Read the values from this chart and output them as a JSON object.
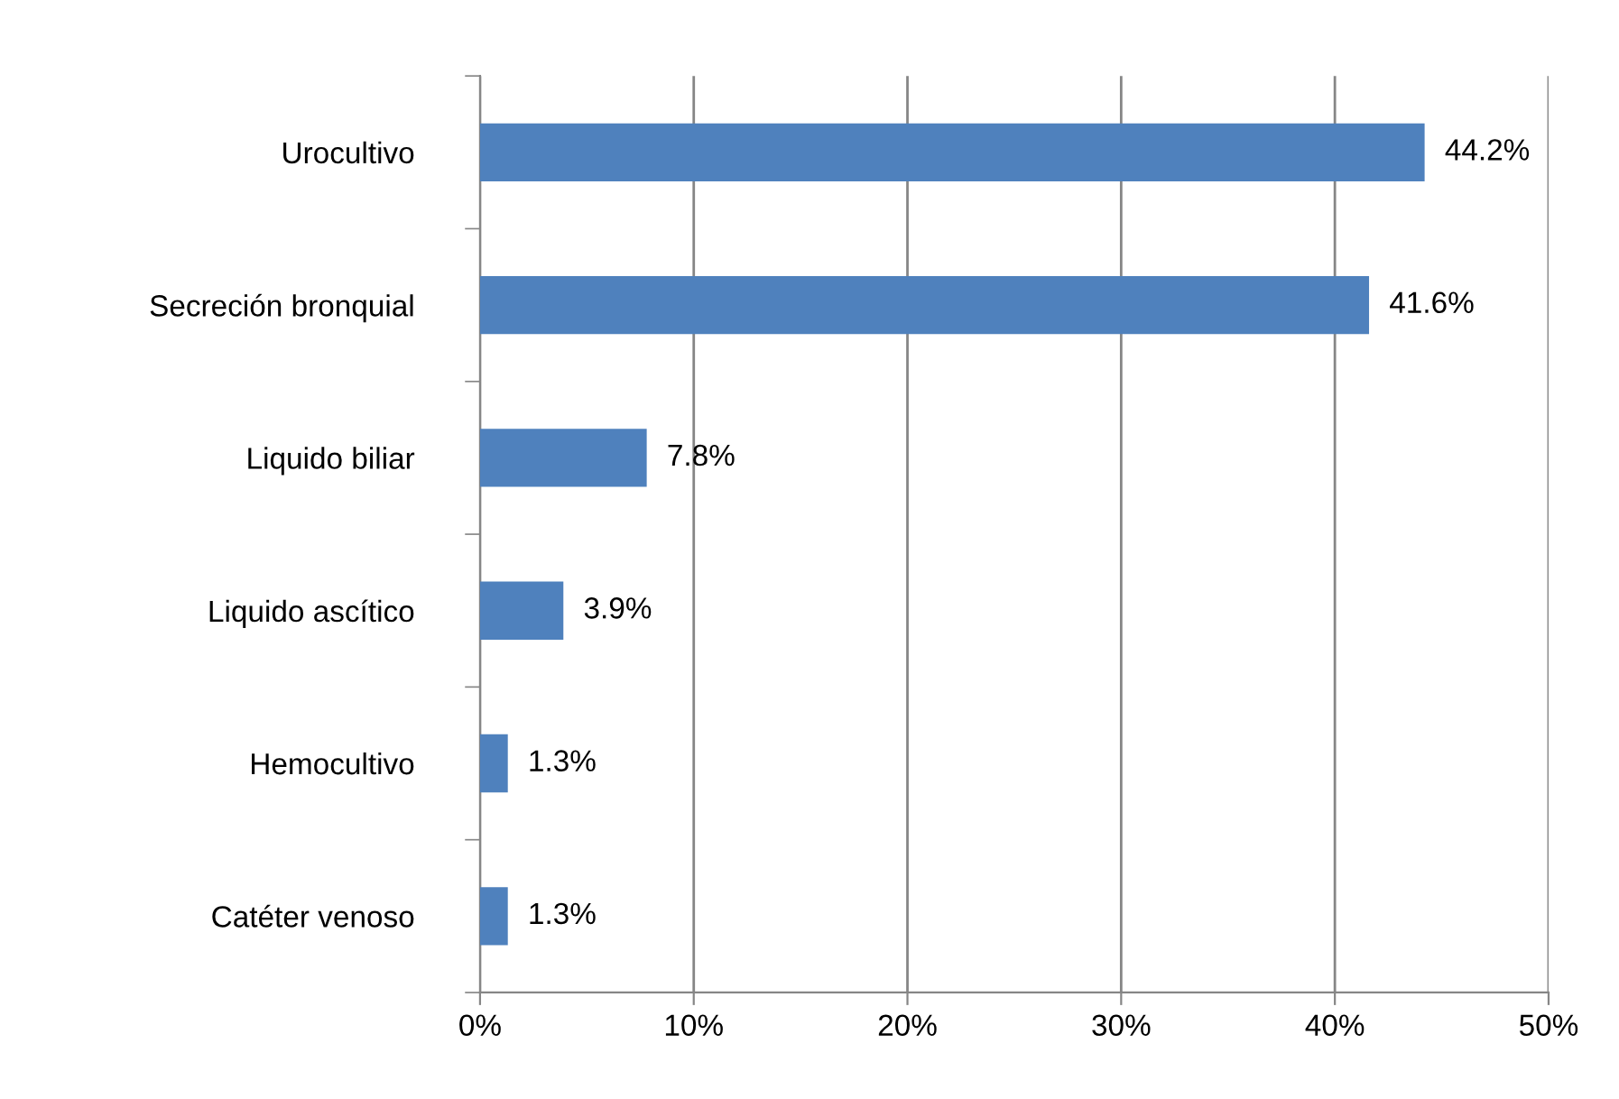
{
  "chart_data": {
    "type": "bar",
    "orientation": "horizontal",
    "categories": [
      "Urocultivo",
      "Secreción bronquial",
      "Liquido biliar",
      "Liquido ascítico",
      "Hemocultivo",
      "Catéter venoso"
    ],
    "values": [
      44.2,
      41.6,
      7.8,
      3.9,
      1.3,
      1.3
    ],
    "value_labels": [
      "44.2%",
      "41.6%",
      "7.8%",
      "3.9%",
      "1.3%",
      "1.3%"
    ],
    "color": "#4f81bd",
    "xlim": [
      0,
      50
    ],
    "xticks": [
      {
        "value": 0,
        "label": "0%"
      },
      {
        "value": 10,
        "label": "10%"
      },
      {
        "value": 20,
        "label": "20%"
      },
      {
        "value": 30,
        "label": "30%"
      },
      {
        "value": 40,
        "label": "40%"
      },
      {
        "value": 50,
        "label": "50%"
      }
    ],
    "grid": "x",
    "legend": false
  }
}
